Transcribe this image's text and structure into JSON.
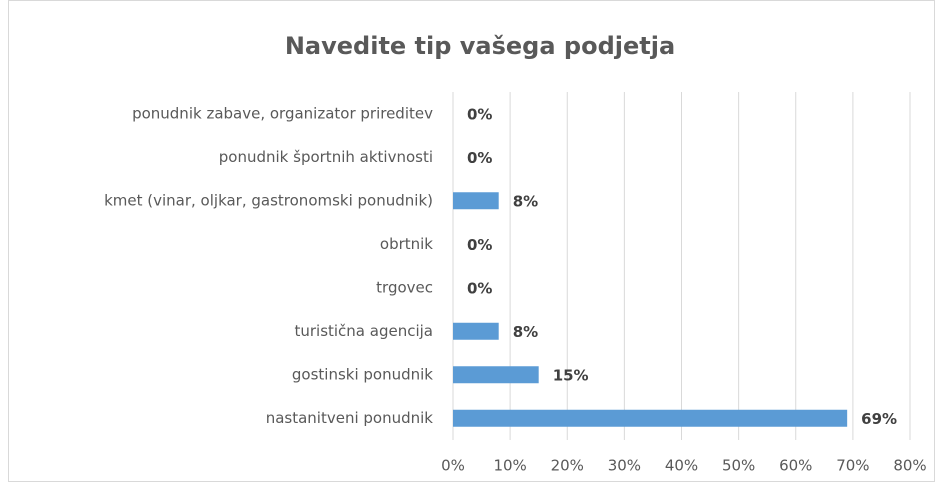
{
  "chart_data": {
    "type": "bar",
    "orientation": "horizontal",
    "title": "Navedite tip vašega podjetja",
    "categories": [
      "ponudnik zabave, organizator prireditev",
      "ponudnik športnih aktivnosti",
      "kmet (vinar, oljkar, gastronomski ponudnik)",
      "obrtnik",
      "trgovec",
      "turistična agencija",
      "gostinski ponudnik",
      "nastanitveni ponudnik"
    ],
    "values": [
      0,
      0,
      8,
      0,
      0,
      8,
      15,
      69
    ],
    "value_labels": [
      "0%",
      "0%",
      "8%",
      "0%",
      "0%",
      "8%",
      "15%",
      "69%"
    ],
    "color": "#5b9bd5",
    "xlim": [
      0,
      80
    ],
    "xticks": [
      {
        "value": 0,
        "label": "0%"
      },
      {
        "value": 10,
        "label": "10%"
      },
      {
        "value": 20,
        "label": "20%"
      },
      {
        "value": 30,
        "label": "30%"
      },
      {
        "value": 40,
        "label": "40%"
      },
      {
        "value": 50,
        "label": "50%"
      },
      {
        "value": 60,
        "label": "60%"
      },
      {
        "value": 70,
        "label": "70%"
      },
      {
        "value": 80,
        "label": "80%"
      }
    ],
    "grid": true
  }
}
